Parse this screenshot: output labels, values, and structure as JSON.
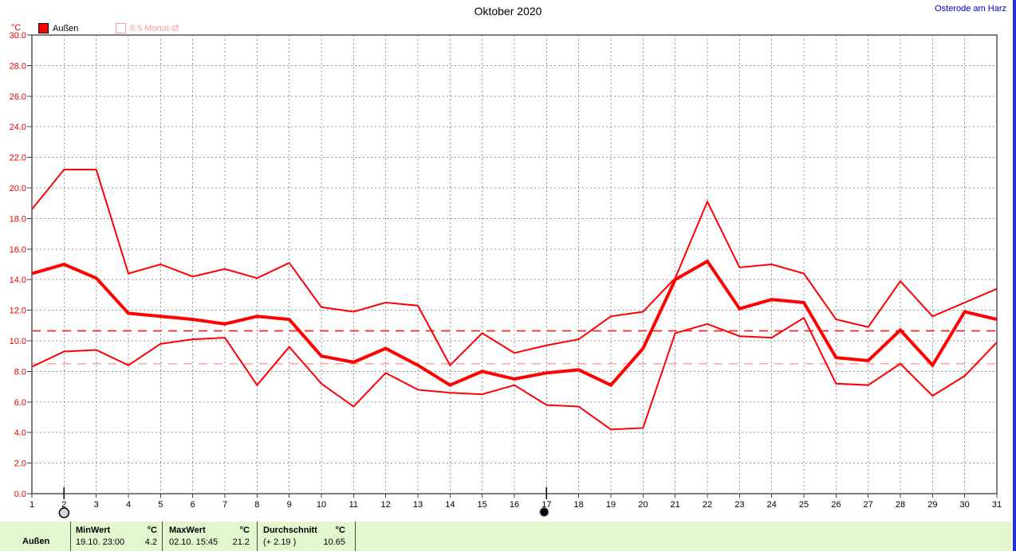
{
  "header": {
    "title": "Oktober 2020",
    "station": "Osterode am Harz"
  },
  "legend": {
    "unit": "°C",
    "outdoor": {
      "label": "Außen",
      "color": "#ff0000"
    },
    "monthly": {
      "label": "8.5 Monat-Ø",
      "color": "#ff9c9c"
    }
  },
  "chart_data": {
    "type": "line",
    "title": "Oktober 2020",
    "y_unit": "°C",
    "ylim": [
      0,
      30
    ],
    "ytick_step": 2,
    "grid": true,
    "x": [
      1,
      2,
      3,
      4,
      5,
      6,
      7,
      8,
      9,
      10,
      11,
      12,
      13,
      14,
      15,
      16,
      17,
      18,
      19,
      20,
      21,
      22,
      23,
      24,
      25,
      26,
      27,
      28,
      29,
      30,
      31
    ],
    "series": [
      {
        "name": "max",
        "color": "#ff0000",
        "width": 2,
        "values": [
          18.6,
          21.2,
          21.2,
          14.4,
          15.0,
          14.2,
          14.7,
          14.1,
          15.1,
          12.2,
          11.9,
          12.5,
          12.3,
          8.4,
          10.5,
          9.2,
          9.7,
          10.1,
          11.6,
          11.9,
          14.1,
          19.1,
          14.8,
          15.0,
          14.4,
          11.4,
          10.9,
          13.9,
          11.6,
          12.5,
          13.4
        ]
      },
      {
        "name": "mean",
        "color": "#ff0000",
        "width": 4,
        "values": [
          14.4,
          15.0,
          14.1,
          11.8,
          11.6,
          11.4,
          11.1,
          11.6,
          11.4,
          9.0,
          8.6,
          9.5,
          8.4,
          7.1,
          8.0,
          7.5,
          7.9,
          8.1,
          7.1,
          9.5,
          14.0,
          15.2,
          12.1,
          12.7,
          12.5,
          8.9,
          8.7,
          10.7,
          8.4,
          11.9,
          11.4
        ]
      },
      {
        "name": "min",
        "color": "#ff0000",
        "width": 2,
        "values": [
          8.3,
          9.3,
          9.4,
          8.4,
          9.8,
          10.1,
          10.2,
          7.1,
          9.6,
          7.2,
          5.7,
          7.9,
          6.8,
          6.6,
          6.5,
          7.1,
          5.8,
          5.7,
          4.2,
          4.3,
          10.5,
          11.1,
          10.3,
          10.2,
          11.5,
          7.2,
          7.1,
          8.5,
          6.4,
          7.7,
          9.9
        ]
      }
    ],
    "reference_lines": [
      {
        "name": "durchschnitt",
        "value": 10.65,
        "color": "#ff1a1a",
        "dash": "11 8"
      },
      {
        "name": "monat-mittel",
        "value": 8.5,
        "color": "#ffa8a8",
        "dash": "11 8"
      }
    ],
    "markers": [
      {
        "day": 2,
        "type": "full-moon"
      },
      {
        "day": 17,
        "type": "new-moon"
      }
    ]
  },
  "statusbar": {
    "sensor": "Außen",
    "min": {
      "header": "MinWert",
      "unit": "°C",
      "datetime": "19.10.  23:00",
      "value": "4.2"
    },
    "max": {
      "header": "MaxWert",
      "unit": "°C",
      "datetime": "02.10.  15:45",
      "value": "21.2"
    },
    "avg": {
      "header": "Durchschnitt",
      "unit": "°C",
      "deviation": "(+ 2.19 )",
      "value": "10.65"
    }
  }
}
